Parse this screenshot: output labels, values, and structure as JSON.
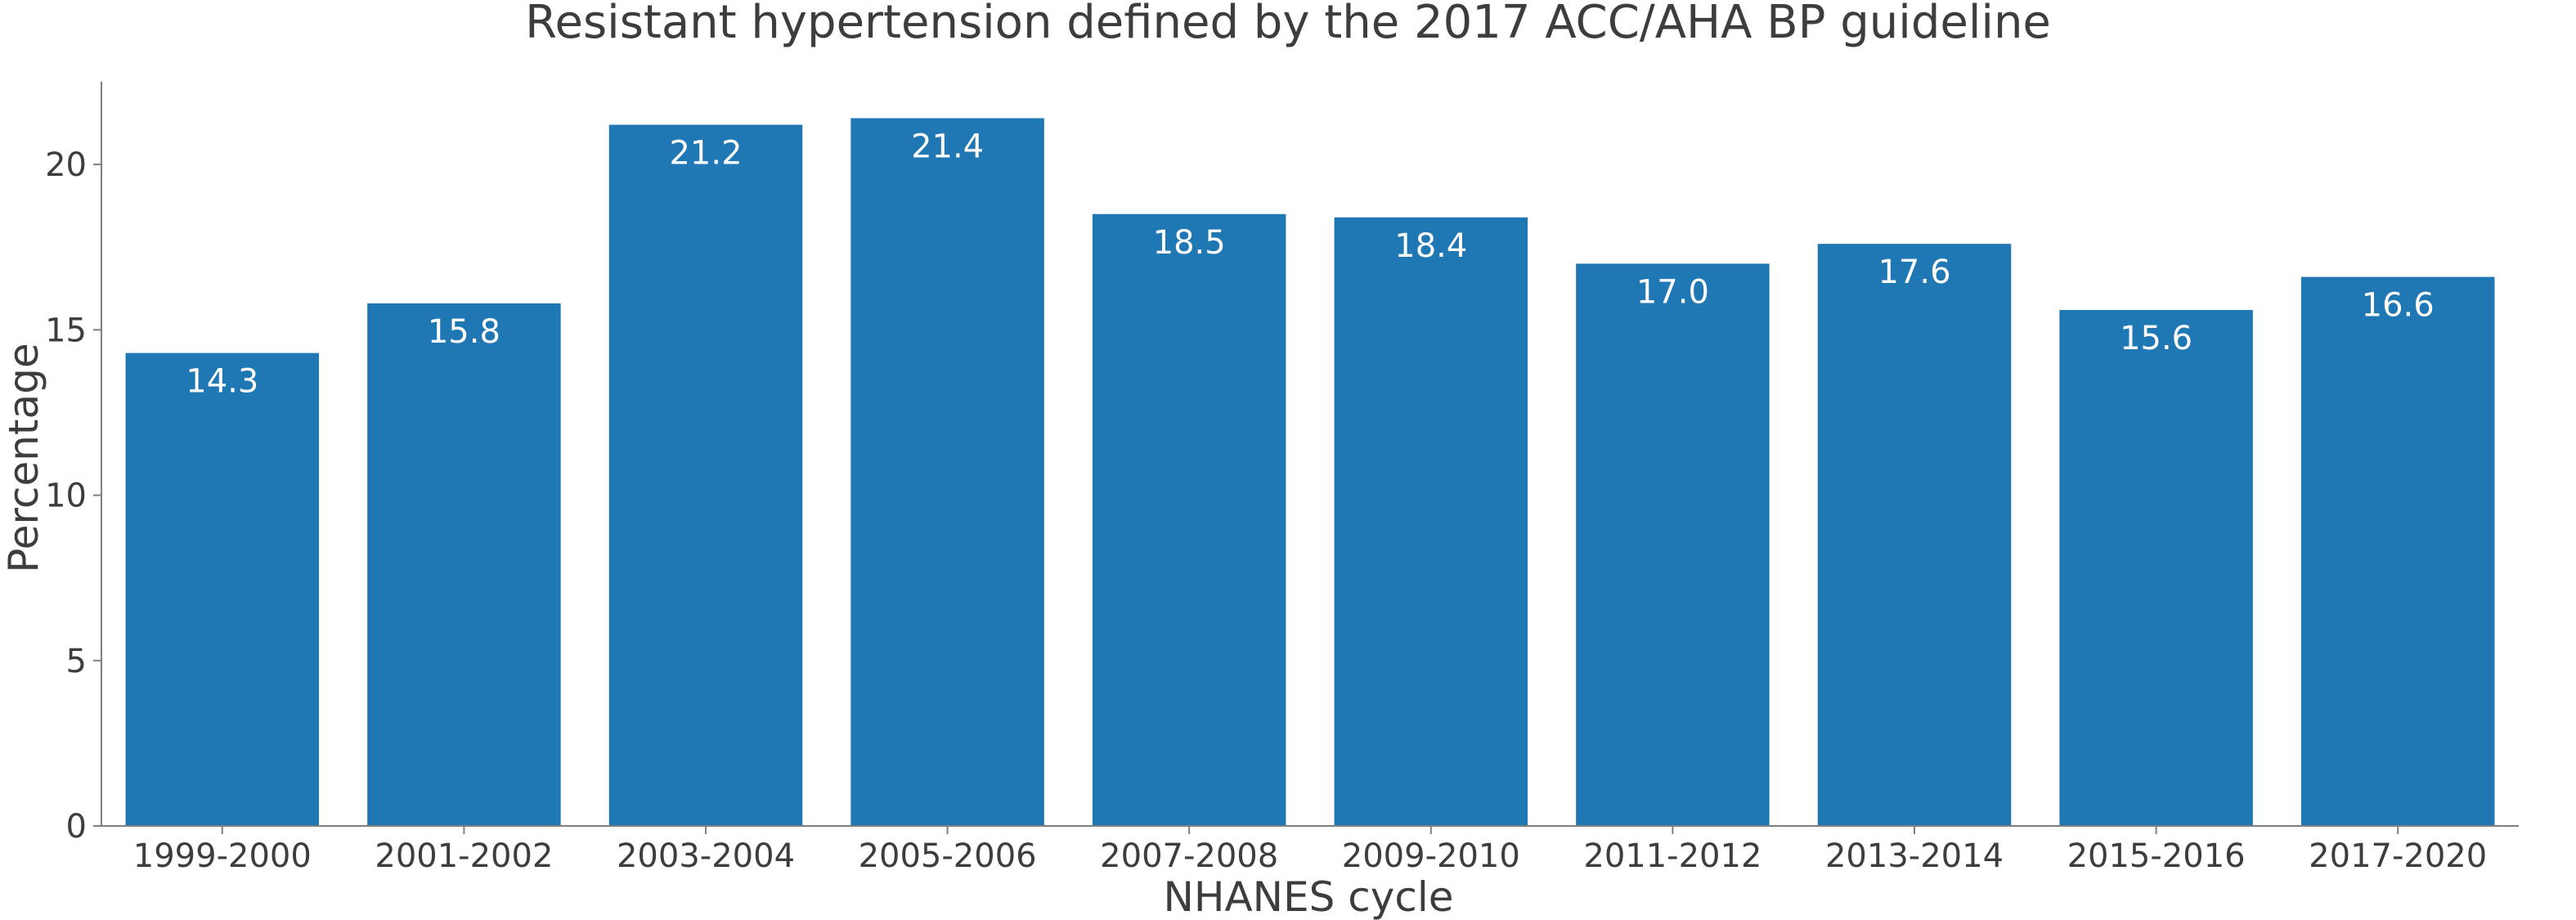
{
  "chart_data": {
    "type": "bar",
    "title": "Resistant hypertension defined by the 2017 ACC/AHA BP guideline",
    "xlabel": "NHANES cycle",
    "ylabel": "Percentage",
    "categories": [
      "1999-2000",
      "2001-2002",
      "2003-2004",
      "2005-2006",
      "2007-2008",
      "2009-2010",
      "2011-2012",
      "2013-2014",
      "2015-2016",
      "2017-2020"
    ],
    "values": [
      14.3,
      15.8,
      21.2,
      21.4,
      18.5,
      18.4,
      17.0,
      17.6,
      15.6,
      16.6
    ],
    "value_labels": [
      "14.3",
      "15.8",
      "21.2",
      "21.4",
      "18.5",
      "18.4",
      "17.0",
      "17.6",
      "15.6",
      "16.6"
    ],
    "ylim": [
      0,
      22.5
    ],
    "yticks": [
      0,
      5,
      10,
      15,
      20
    ],
    "ytick_labels": [
      "0",
      "5",
      "10",
      "15",
      "20"
    ],
    "bar_color": "#1f77b4",
    "grid": false,
    "legend": "none"
  }
}
